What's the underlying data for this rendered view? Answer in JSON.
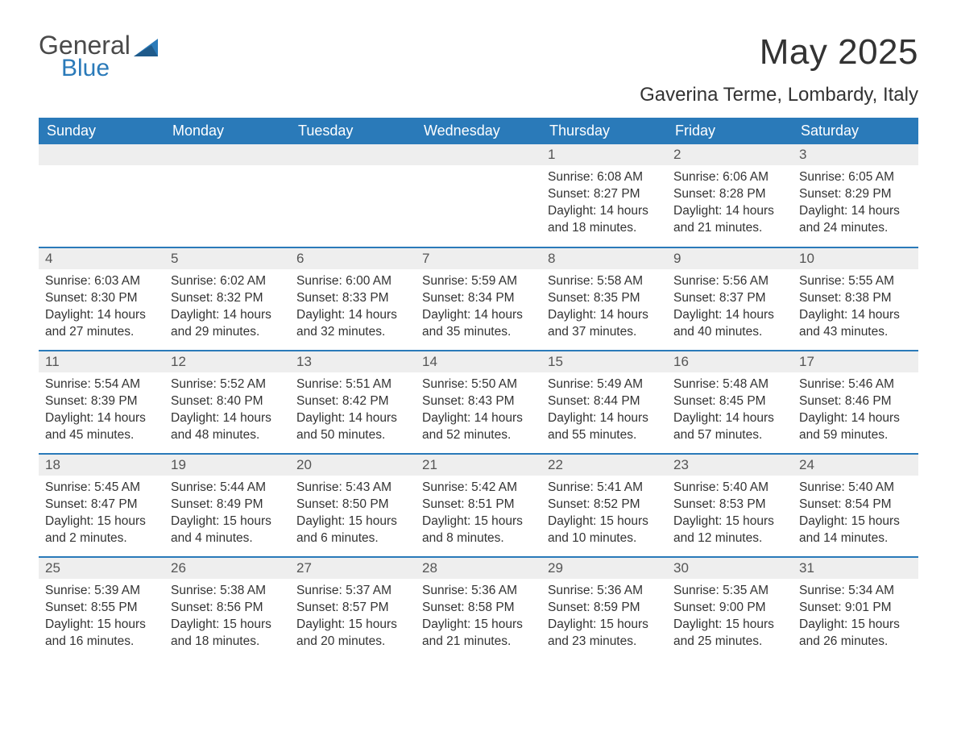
{
  "logo": {
    "word1": "General",
    "word2": "Blue"
  },
  "title": "May 2025",
  "location": "Gaverina Terme, Lombardy, Italy",
  "colors": {
    "header_bg": "#2a7ab9",
    "header_text": "#ffffff",
    "daynum_bg": "#eeeeee",
    "border": "#2a7ab9",
    "text": "#333333",
    "background": "#ffffff"
  },
  "weekdays": [
    "Sunday",
    "Monday",
    "Tuesday",
    "Wednesday",
    "Thursday",
    "Friday",
    "Saturday"
  ],
  "first_weekday_index": 4,
  "days_in_month": 31,
  "days": {
    "1": {
      "sunrise": "6:08 AM",
      "sunset": "8:27 PM",
      "daylight": "14 hours and 18 minutes."
    },
    "2": {
      "sunrise": "6:06 AM",
      "sunset": "8:28 PM",
      "daylight": "14 hours and 21 minutes."
    },
    "3": {
      "sunrise": "6:05 AM",
      "sunset": "8:29 PM",
      "daylight": "14 hours and 24 minutes."
    },
    "4": {
      "sunrise": "6:03 AM",
      "sunset": "8:30 PM",
      "daylight": "14 hours and 27 minutes."
    },
    "5": {
      "sunrise": "6:02 AM",
      "sunset": "8:32 PM",
      "daylight": "14 hours and 29 minutes."
    },
    "6": {
      "sunrise": "6:00 AM",
      "sunset": "8:33 PM",
      "daylight": "14 hours and 32 minutes."
    },
    "7": {
      "sunrise": "5:59 AM",
      "sunset": "8:34 PM",
      "daylight": "14 hours and 35 minutes."
    },
    "8": {
      "sunrise": "5:58 AM",
      "sunset": "8:35 PM",
      "daylight": "14 hours and 37 minutes."
    },
    "9": {
      "sunrise": "5:56 AM",
      "sunset": "8:37 PM",
      "daylight": "14 hours and 40 minutes."
    },
    "10": {
      "sunrise": "5:55 AM",
      "sunset": "8:38 PM",
      "daylight": "14 hours and 43 minutes."
    },
    "11": {
      "sunrise": "5:54 AM",
      "sunset": "8:39 PM",
      "daylight": "14 hours and 45 minutes."
    },
    "12": {
      "sunrise": "5:52 AM",
      "sunset": "8:40 PM",
      "daylight": "14 hours and 48 minutes."
    },
    "13": {
      "sunrise": "5:51 AM",
      "sunset": "8:42 PM",
      "daylight": "14 hours and 50 minutes."
    },
    "14": {
      "sunrise": "5:50 AM",
      "sunset": "8:43 PM",
      "daylight": "14 hours and 52 minutes."
    },
    "15": {
      "sunrise": "5:49 AM",
      "sunset": "8:44 PM",
      "daylight": "14 hours and 55 minutes."
    },
    "16": {
      "sunrise": "5:48 AM",
      "sunset": "8:45 PM",
      "daylight": "14 hours and 57 minutes."
    },
    "17": {
      "sunrise": "5:46 AM",
      "sunset": "8:46 PM",
      "daylight": "14 hours and 59 minutes."
    },
    "18": {
      "sunrise": "5:45 AM",
      "sunset": "8:47 PM",
      "daylight": "15 hours and 2 minutes."
    },
    "19": {
      "sunrise": "5:44 AM",
      "sunset": "8:49 PM",
      "daylight": "15 hours and 4 minutes."
    },
    "20": {
      "sunrise": "5:43 AM",
      "sunset": "8:50 PM",
      "daylight": "15 hours and 6 minutes."
    },
    "21": {
      "sunrise": "5:42 AM",
      "sunset": "8:51 PM",
      "daylight": "15 hours and 8 minutes."
    },
    "22": {
      "sunrise": "5:41 AM",
      "sunset": "8:52 PM",
      "daylight": "15 hours and 10 minutes."
    },
    "23": {
      "sunrise": "5:40 AM",
      "sunset": "8:53 PM",
      "daylight": "15 hours and 12 minutes."
    },
    "24": {
      "sunrise": "5:40 AM",
      "sunset": "8:54 PM",
      "daylight": "15 hours and 14 minutes."
    },
    "25": {
      "sunrise": "5:39 AM",
      "sunset": "8:55 PM",
      "daylight": "15 hours and 16 minutes."
    },
    "26": {
      "sunrise": "5:38 AM",
      "sunset": "8:56 PM",
      "daylight": "15 hours and 18 minutes."
    },
    "27": {
      "sunrise": "5:37 AM",
      "sunset": "8:57 PM",
      "daylight": "15 hours and 20 minutes."
    },
    "28": {
      "sunrise": "5:36 AM",
      "sunset": "8:58 PM",
      "daylight": "15 hours and 21 minutes."
    },
    "29": {
      "sunrise": "5:36 AM",
      "sunset": "8:59 PM",
      "daylight": "15 hours and 23 minutes."
    },
    "30": {
      "sunrise": "5:35 AM",
      "sunset": "9:00 PM",
      "daylight": "15 hours and 25 minutes."
    },
    "31": {
      "sunrise": "5:34 AM",
      "sunset": "9:01 PM",
      "daylight": "15 hours and 26 minutes."
    }
  },
  "labels": {
    "sunrise": "Sunrise: ",
    "sunset": "Sunset: ",
    "daylight": "Daylight: "
  }
}
